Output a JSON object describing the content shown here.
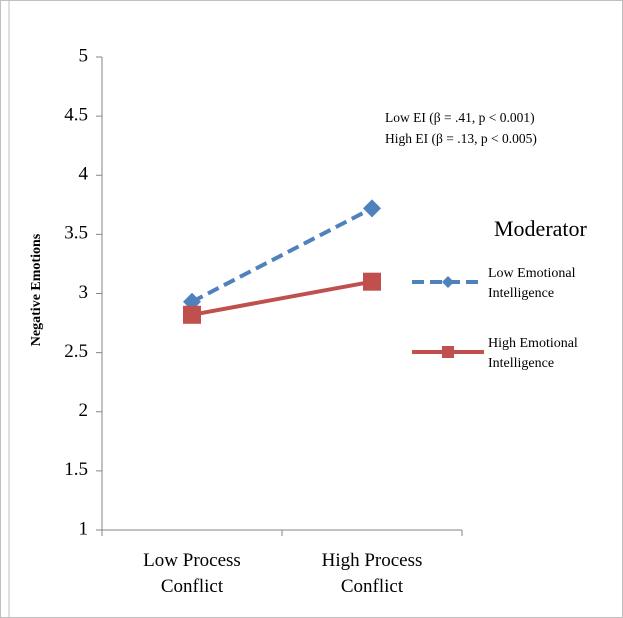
{
  "chart_data": {
    "type": "line",
    "y_label": "Negative Emotions",
    "categories": [
      "Low Process Conflict",
      "High Process Conflict"
    ],
    "series": [
      {
        "name": "Low Emotional Intelligence",
        "color": "#4f81bd",
        "values": [
          2.93,
          3.72
        ]
      },
      {
        "name": "High Emotional Intelligence",
        "color": "#c0504d",
        "values": [
          2.82,
          3.1
        ]
      }
    ],
    "ylim": [
      1,
      5
    ],
    "yticks": [
      1,
      1.5,
      2,
      2.5,
      3,
      3.5,
      4,
      4.5,
      5
    ],
    "legend_title": "Moderator",
    "annotations": [
      "Low EI (β = .41, p < 0.001)",
      "High EI (β = .13, p < 0.005)"
    ]
  }
}
